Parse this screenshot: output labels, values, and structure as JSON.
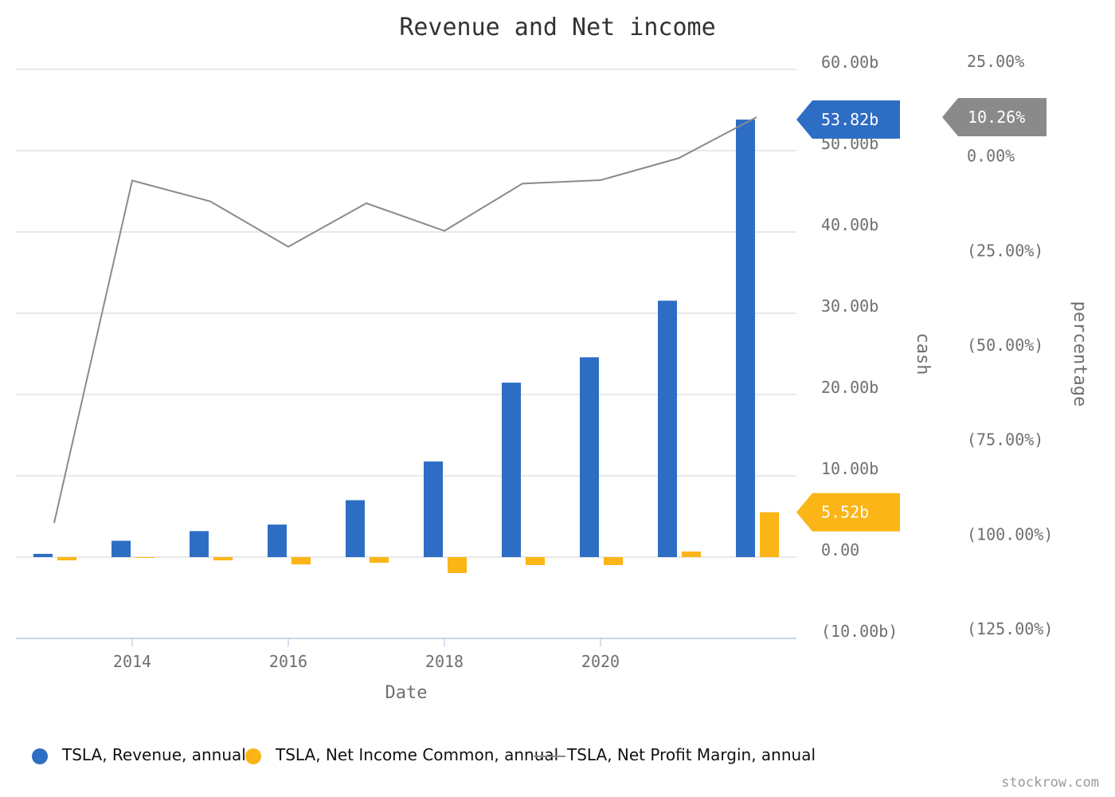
{
  "credit": "stockrow.com",
  "colors": {
    "revenue": "#2e6dc4",
    "net_income": "#fbb516",
    "margin": "#8a8a8a",
    "grid": "#e2e2e2",
    "axis_text": "#6f6f6f",
    "title_text": "#333333"
  },
  "chart_data": {
    "type": "bar",
    "title": "Revenue and Net income",
    "xlabel": "Date",
    "ylabel_left": "cash",
    "ylabel_right": "percentage",
    "x_ticks": [
      "2014",
      "2016",
      "2018",
      "2020"
    ],
    "x": [
      2013,
      2014,
      2015,
      2016,
      2017,
      2018,
      2019,
      2020,
      2021,
      2022
    ],
    "cash_ticks": [
      "60.00b",
      "50.00b",
      "40.00b",
      "30.00b",
      "20.00b",
      "10.00b",
      "0.00",
      "(10.00b)"
    ],
    "cash_tick_values": [
      60,
      50,
      40,
      30,
      20,
      10,
      0,
      -10
    ],
    "ylim_cash": [
      -10,
      60
    ],
    "pct_ticks": [
      "25.00%",
      "0.00%",
      "(25.00%)",
      "(50.00%)",
      "(75.00%)",
      "(100.00%)",
      "(125.00%)"
    ],
    "pct_tick_values": [
      25,
      0,
      -25,
      -50,
      -75,
      -100,
      -125
    ],
    "ylim_pct": [
      -125,
      25
    ],
    "grid": true,
    "legend_position": "bottom",
    "series": [
      {
        "name": "TSLA, Revenue, annual",
        "type": "bar",
        "axis": "cash",
        "color": "#2e6dc4",
        "values": [
          0.4,
          2.01,
          3.2,
          4.0,
          7.0,
          11.76,
          21.46,
          24.58,
          31.54,
          53.82
        ],
        "last_label": "53.82b"
      },
      {
        "name": "TSLA, Net Income Common, annual",
        "type": "bar",
        "axis": "cash",
        "color": "#fbb516",
        "values": [
          -0.4,
          -0.07,
          -0.4,
          -0.9,
          -0.7,
          -1.96,
          -0.98,
          -0.98,
          0.69,
          5.52
        ],
        "last_label": "5.52b"
      },
      {
        "name": "TSLA, Net Profit Margin, annual",
        "type": "line",
        "axis": "pct",
        "color": "#8a8a8a",
        "values": [
          -97.0,
          -6.5,
          -12.0,
          -24.0,
          -12.5,
          -19.8,
          -7.3,
          -6.4,
          -0.6,
          10.26
        ],
        "last_label": "10.26%"
      }
    ]
  }
}
